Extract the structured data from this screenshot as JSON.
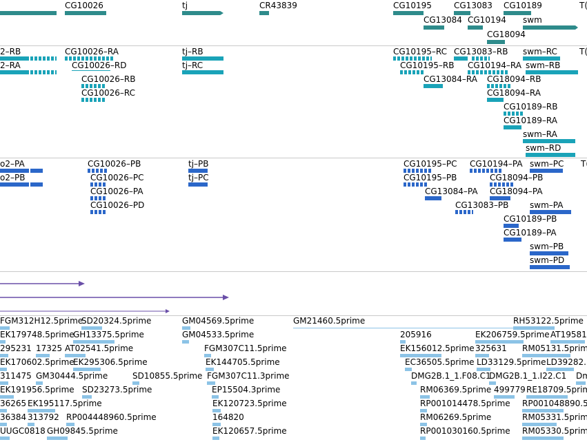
{
  "colors": {
    "gene": "#2e8b8b",
    "transcript_rna": "#1aa3b8",
    "transcript_protein": "#2b67c9",
    "purple": "#6a4fa8",
    "est": "#8cc3e6",
    "separator": "#c9c9c9"
  },
  "tracks": {
    "genes": {
      "items": [
        {
          "label": "CG10026"
        },
        {
          "label": "tj"
        },
        {
          "label": "CR43839"
        },
        {
          "label": "CG10195"
        },
        {
          "label": "CG13083"
        },
        {
          "label": "CG10189"
        },
        {
          "label": "T("
        },
        {
          "label": "CG13084"
        },
        {
          "label": "CG10194"
        },
        {
          "label": "swm"
        },
        {
          "label": "CG18094"
        }
      ]
    },
    "transcripts": {
      "items": [
        {
          "label": "2–RB"
        },
        {
          "label": "2–RA"
        },
        {
          "label": "CG10026–RA"
        },
        {
          "label": "CG10026–RD"
        },
        {
          "label": "CG10026–RB"
        },
        {
          "label": "CG10026–RC"
        },
        {
          "label": "tj–RB"
        },
        {
          "label": "tj–RC"
        },
        {
          "label": "CG10195–RC"
        },
        {
          "label": "CG13083–RB"
        },
        {
          "label": "swm–RC"
        },
        {
          "label": "T("
        },
        {
          "label": "CG10195–RB"
        },
        {
          "label": "CG10194–RA"
        },
        {
          "label": "swm–RB"
        },
        {
          "label": "CG13084–RA"
        },
        {
          "label": "CG18094–RB"
        },
        {
          "label": "CG18094–RA"
        },
        {
          "label": "CG10189–RB"
        },
        {
          "label": "CG10189–RA"
        },
        {
          "label": "swm–RA"
        },
        {
          "label": "swm–RD"
        }
      ]
    },
    "proteins": {
      "items": [
        {
          "label": "o2–PA"
        },
        {
          "label": "o2–PB"
        },
        {
          "label": "CG10026–PB"
        },
        {
          "label": "CG10026–PC"
        },
        {
          "label": "CG10026–PA"
        },
        {
          "label": "CG10026–PD"
        },
        {
          "label": "tj–PB"
        },
        {
          "label": "tj–PC"
        },
        {
          "label": "CG10195–PC"
        },
        {
          "label": "CG10194–PA"
        },
        {
          "label": "swm–PC"
        },
        {
          "label": "T("
        },
        {
          "label": "CG10195–PB"
        },
        {
          "label": "CG18094–PB"
        },
        {
          "label": "CG13084–PA"
        },
        {
          "label": "CG18094–PA"
        },
        {
          "label": "CG13083–PB"
        },
        {
          "label": "swm–PA"
        },
        {
          "label": "CG10189–PB"
        },
        {
          "label": "CG10189–PA"
        },
        {
          "label": "swm–PB"
        },
        {
          "label": "swm–PD"
        }
      ]
    },
    "ests": {
      "items": [
        {
          "label": "FGM312H12.5prime"
        },
        {
          "label": "SD20324.5prime"
        },
        {
          "label": "GM04569.5prime"
        },
        {
          "label": "GM21460.5prime"
        },
        {
          "label": "RH53122.5prime"
        },
        {
          "label": "EK179748.5prime"
        },
        {
          "label": "GH13375.5prime"
        },
        {
          "label": "GM04533.5prime"
        },
        {
          "label": "205916"
        },
        {
          "label": "EK206759.5prime"
        },
        {
          "label": "AT19581"
        },
        {
          "label": "295231"
        },
        {
          "label": "17325"
        },
        {
          "label": "AT02541.5prime"
        },
        {
          "label": "FGM307C11.5prime"
        },
        {
          "label": "EK156012.5prime"
        },
        {
          "label": "325631"
        },
        {
          "label": "RM05131.5prime"
        },
        {
          "label": "EK170602.5prime"
        },
        {
          "label": "EK295306.5prime"
        },
        {
          "label": "EK144705.5prime"
        },
        {
          "label": "EC36505.5prime"
        },
        {
          "label": "LD33129.5prime"
        },
        {
          "label": "LD39282."
        },
        {
          "label": "311475"
        },
        {
          "label": "GM30444.5prime"
        },
        {
          "label": "SD10855.5prime"
        },
        {
          "label": "FGM307C11.3prime"
        },
        {
          "label": "DMG2B.1_1.F08.C1"
        },
        {
          "label": "DMG2B.1_1.I22.C1"
        },
        {
          "label": "Dm"
        },
        {
          "label": "EK191956.5prime"
        },
        {
          "label": "SD23273.5prime"
        },
        {
          "label": "EP15504.3prime"
        },
        {
          "label": "RM06369.5prime"
        },
        {
          "label": "499779"
        },
        {
          "label": "RE18709.5prime"
        },
        {
          "label": "36265"
        },
        {
          "label": "EK195117.5prime"
        },
        {
          "label": "EK120723.5prime"
        },
        {
          "label": "RP001014478.5prime"
        },
        {
          "label": "RP001048890.5"
        },
        {
          "label": "36384"
        },
        {
          "label": "313792"
        },
        {
          "label": "RP004448960.5prime"
        },
        {
          "label": "164820"
        },
        {
          "label": "RM06269.5prime"
        },
        {
          "label": "RM05331.5prime"
        },
        {
          "label": "UUGC0818"
        },
        {
          "label": "GH09845.5prime"
        },
        {
          "label": "EK120657.5prime"
        },
        {
          "label": "RP001030160.5prime"
        },
        {
          "label": "RM05330.5prime"
        }
      ]
    }
  }
}
